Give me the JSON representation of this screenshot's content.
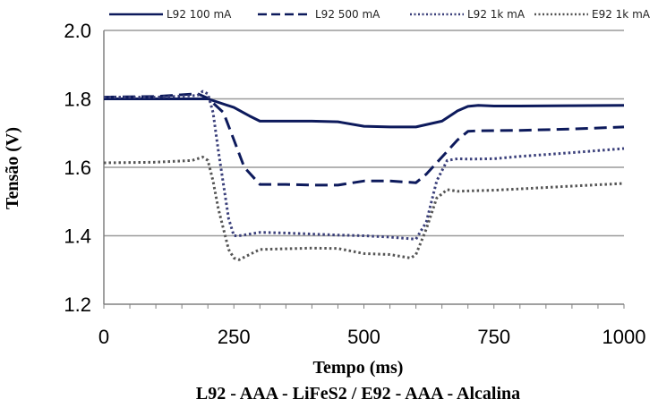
{
  "chart_data": {
    "type": "line",
    "title": "L92 - AAA - LiFeS2 / E92 - AAA - Alcalina",
    "xlabel": "Tempo (ms)",
    "ylabel": "Tensão (V)",
    "xlim": [
      0,
      1000
    ],
    "ylim": [
      1.2,
      2.0
    ],
    "xticks": [
      0,
      250,
      500,
      750,
      1000
    ],
    "yticks": [
      1.2,
      1.4,
      1.6,
      1.8,
      2.0
    ],
    "xtick_labels": [
      "0",
      "250",
      "500",
      "750",
      "1000"
    ],
    "ytick_labels": [
      "1.2",
      "1.4",
      "1.6",
      "1.8",
      "2.0"
    ],
    "grid": "horizontal",
    "legend_position": "top",
    "series": [
      {
        "name": "L92 100 mA",
        "color": "#0d1a5c",
        "style": "solid",
        "x": [
          0,
          100,
          180,
          200,
          250,
          280,
          300,
          350,
          400,
          450,
          500,
          550,
          600,
          650,
          680,
          700,
          720,
          750,
          800,
          900,
          1000
        ],
        "y": [
          1.8,
          1.8,
          1.8,
          1.8,
          1.775,
          1.75,
          1.735,
          1.735,
          1.735,
          1.733,
          1.72,
          1.718,
          1.718,
          1.735,
          1.765,
          1.778,
          1.781,
          1.779,
          1.779,
          1.78,
          1.781
        ]
      },
      {
        "name": "L92 500 mA",
        "color": "#0d1a5c",
        "style": "dashed",
        "x": [
          0,
          100,
          180,
          200,
          230,
          250,
          270,
          300,
          350,
          400,
          450,
          500,
          550,
          600,
          620,
          650,
          680,
          700,
          720,
          800,
          900,
          1000
        ],
        "y": [
          1.805,
          1.807,
          1.815,
          1.802,
          1.76,
          1.68,
          1.6,
          1.55,
          1.55,
          1.548,
          1.548,
          1.56,
          1.56,
          1.555,
          1.58,
          1.63,
          1.68,
          1.705,
          1.707,
          1.708,
          1.712,
          1.718
        ]
      },
      {
        "name": "L92 1k mA",
        "color": "#3a3f7a",
        "style": "dotted",
        "x": [
          0,
          100,
          180,
          190,
          200,
          210,
          220,
          240,
          250,
          260,
          280,
          300,
          350,
          400,
          450,
          500,
          550,
          600,
          620,
          640,
          660,
          680,
          700,
          750,
          800,
          900,
          1000
        ],
        "y": [
          1.805,
          1.805,
          1.81,
          1.822,
          1.815,
          1.76,
          1.65,
          1.45,
          1.4,
          1.4,
          1.405,
          1.41,
          1.408,
          1.405,
          1.402,
          1.4,
          1.396,
          1.39,
          1.44,
          1.56,
          1.62,
          1.625,
          1.624,
          1.625,
          1.632,
          1.643,
          1.655
        ]
      },
      {
        "name": "E92 1k mA",
        "color": "#555555",
        "style": "dotted",
        "x": [
          0,
          100,
          170,
          190,
          200,
          210,
          220,
          240,
          250,
          260,
          280,
          300,
          350,
          400,
          450,
          500,
          550,
          590,
          600,
          620,
          640,
          660,
          680,
          700,
          750,
          800,
          900,
          1000
        ],
        "y": [
          1.613,
          1.615,
          1.62,
          1.63,
          1.62,
          1.56,
          1.48,
          1.36,
          1.335,
          1.33,
          1.345,
          1.36,
          1.362,
          1.364,
          1.363,
          1.348,
          1.345,
          1.335,
          1.345,
          1.42,
          1.51,
          1.535,
          1.53,
          1.531,
          1.533,
          1.537,
          1.545,
          1.553
        ]
      }
    ]
  }
}
